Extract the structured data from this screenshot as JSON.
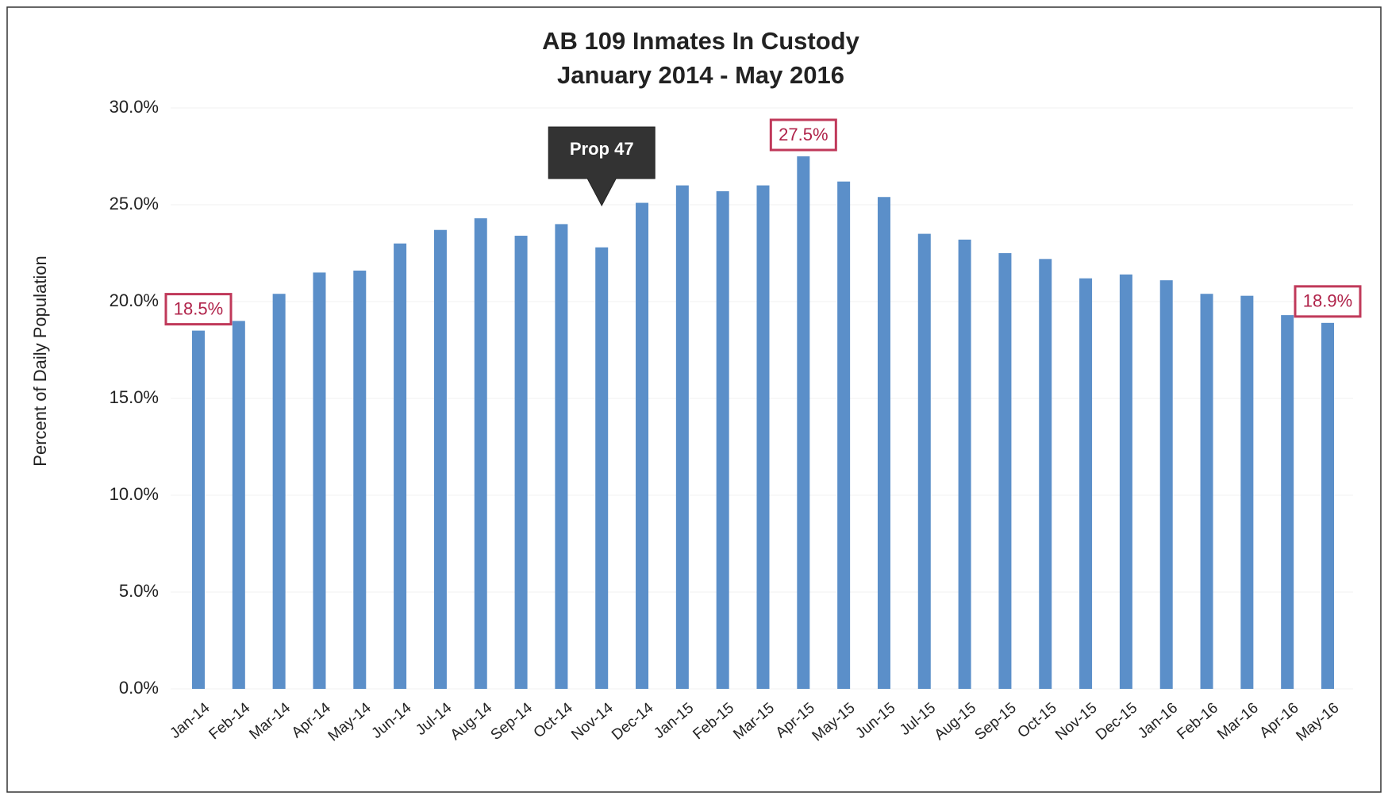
{
  "chart_data": {
    "type": "bar",
    "title": "AB 109  Inmates In Custody",
    "subtitle": "January 2014 - May 2016",
    "y_label": "Percent of Daily Population",
    "categories": [
      "Jan-14",
      "Feb-14",
      "Mar-14",
      "Apr-14",
      "May-14",
      "Jun-14",
      "Jul-14",
      "Aug-14",
      "Sep-14",
      "Oct-14",
      "Nov-14",
      "Dec-14",
      "Jan-15",
      "Feb-15",
      "Mar-15",
      "Apr-15",
      "May-15",
      "Jun-15",
      "Jul-15",
      "Aug-15",
      "Sep-15",
      "Oct-15",
      "Nov-15",
      "Dec-15",
      "Jan-16",
      "Feb-16",
      "Mar-16",
      "Apr-16",
      "May-16"
    ],
    "values": [
      18.5,
      19.0,
      20.4,
      21.5,
      21.6,
      23.0,
      23.7,
      24.3,
      23.4,
      24.0,
      22.8,
      25.1,
      26.0,
      25.7,
      26.0,
      27.5,
      26.2,
      25.4,
      23.5,
      23.2,
      22.5,
      22.2,
      21.2,
      21.4,
      21.1,
      20.4,
      20.3,
      19.3,
      18.9
    ],
    "value_labels": [
      "18.5%",
      null,
      null,
      null,
      null,
      null,
      null,
      null,
      null,
      null,
      null,
      null,
      null,
      null,
      null,
      "27.5%",
      null,
      null,
      null,
      null,
      null,
      null,
      null,
      null,
      null,
      null,
      null,
      null,
      "18.9%"
    ],
    "color": "#5b8fc9",
    "ylim": [
      0,
      30
    ],
    "yticks": [
      {
        "value": 0,
        "label": "0.0%"
      },
      {
        "value": 5,
        "label": "5.0%"
      },
      {
        "value": 10,
        "label": "10.0%"
      },
      {
        "value": 15,
        "label": "15.0%"
      },
      {
        "value": 20,
        "label": "20.0%"
      },
      {
        "value": 25,
        "label": "25.0%"
      },
      {
        "value": 30,
        "label": "30.0%"
      }
    ],
    "grid": true,
    "annotations": [
      {
        "text": "Prop 47",
        "at": "Nov-14"
      }
    ]
  }
}
